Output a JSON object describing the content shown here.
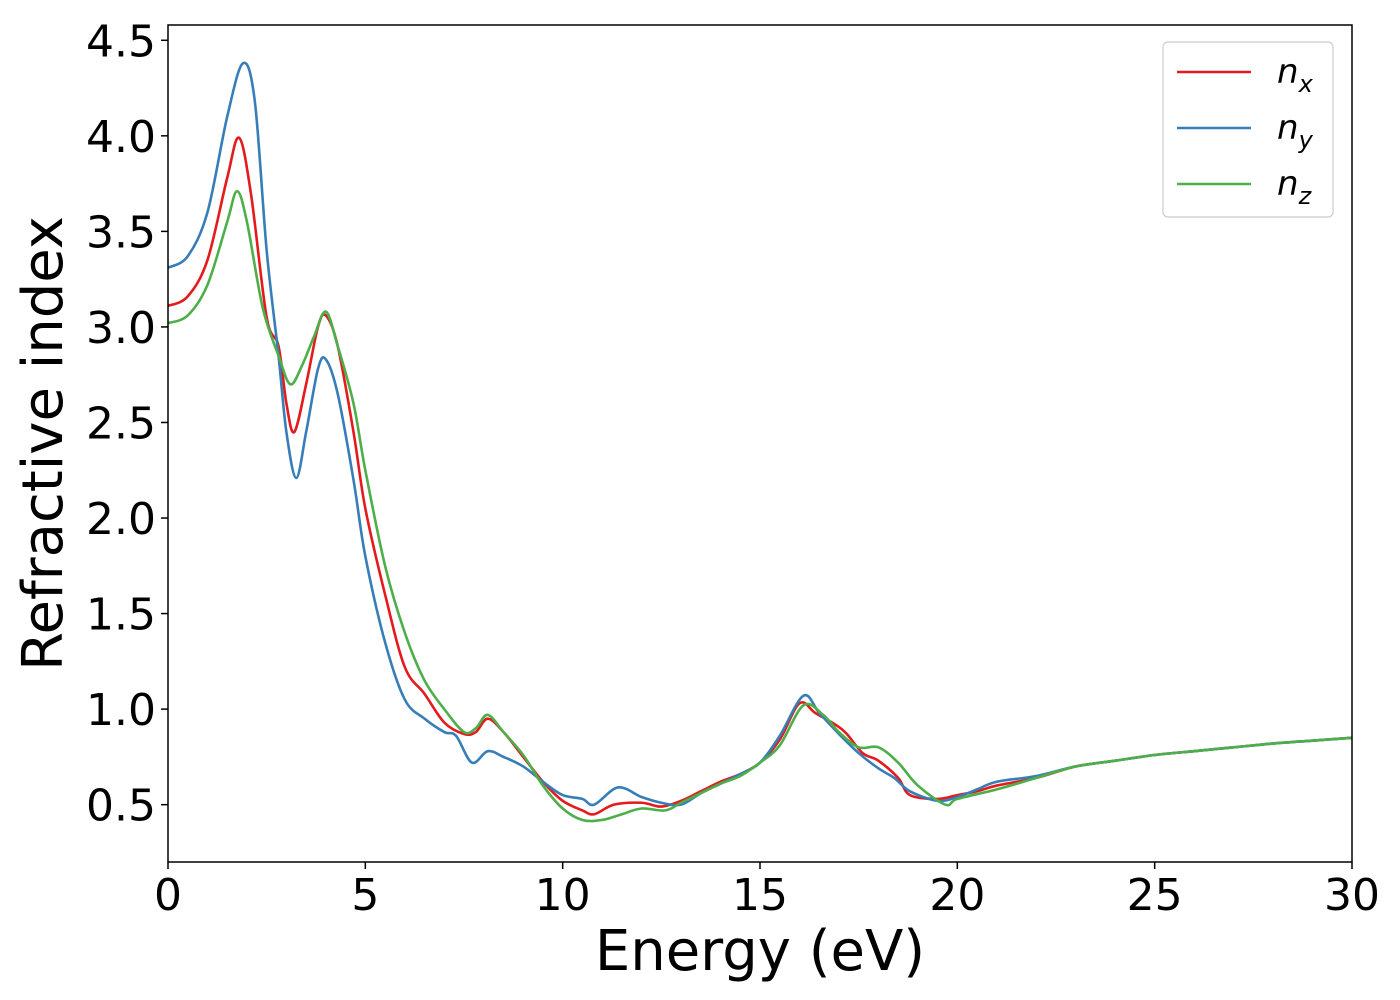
{
  "chart_data": {
    "type": "line",
    "title": "",
    "xlabel": "Energy (eV)",
    "ylabel": "Refractive index",
    "xlim": [
      0,
      30
    ],
    "ylim": [
      0.2,
      4.58
    ],
    "xticks": [
      0,
      5,
      10,
      15,
      20,
      25,
      30
    ],
    "xtick_labels": [
      "0",
      "5",
      "10",
      "15",
      "20",
      "25",
      "30"
    ],
    "yticks": [
      0.5,
      1.0,
      1.5,
      2.0,
      2.5,
      3.0,
      3.5,
      4.0,
      4.5
    ],
    "ytick_labels": [
      "0.5",
      "1.0",
      "1.5",
      "2.0",
      "2.5",
      "3.0",
      "3.5",
      "4.0",
      "4.5"
    ],
    "grid": false,
    "legend_position": "top-right",
    "series": [
      {
        "name_base": "n",
        "name_sub": "x",
        "color": "#e41a1c",
        "points": [
          [
            0,
            3.11
          ],
          [
            0.5,
            3.16
          ],
          [
            1.0,
            3.35
          ],
          [
            1.5,
            3.78
          ],
          [
            1.8,
            3.99
          ],
          [
            2.1,
            3.7
          ],
          [
            2.5,
            3.05
          ],
          [
            2.8,
            2.9
          ],
          [
            3.0,
            2.6
          ],
          [
            3.2,
            2.45
          ],
          [
            3.5,
            2.7
          ],
          [
            3.8,
            3.0
          ],
          [
            4.0,
            3.06
          ],
          [
            4.3,
            2.9
          ],
          [
            4.7,
            2.45
          ],
          [
            5.0,
            2.05
          ],
          [
            5.5,
            1.6
          ],
          [
            6.0,
            1.22
          ],
          [
            6.5,
            1.08
          ],
          [
            7.0,
            0.93
          ],
          [
            7.5,
            0.87
          ],
          [
            7.8,
            0.88
          ],
          [
            8.1,
            0.95
          ],
          [
            8.5,
            0.88
          ],
          [
            9.0,
            0.75
          ],
          [
            9.5,
            0.62
          ],
          [
            10.0,
            0.52
          ],
          [
            10.5,
            0.47
          ],
          [
            10.8,
            0.45
          ],
          [
            11.3,
            0.5
          ],
          [
            12.0,
            0.51
          ],
          [
            12.5,
            0.49
          ],
          [
            13.0,
            0.52
          ],
          [
            13.5,
            0.57
          ],
          [
            14.0,
            0.62
          ],
          [
            14.5,
            0.66
          ],
          [
            15.0,
            0.72
          ],
          [
            15.5,
            0.84
          ],
          [
            16.0,
            1.03
          ],
          [
            16.4,
            0.98
          ],
          [
            16.9,
            0.92
          ],
          [
            17.2,
            0.87
          ],
          [
            17.6,
            0.77
          ],
          [
            18.0,
            0.73
          ],
          [
            18.5,
            0.64
          ],
          [
            18.8,
            0.55
          ],
          [
            19.5,
            0.53
          ],
          [
            20.0,
            0.55
          ],
          [
            20.5,
            0.57
          ],
          [
            21.0,
            0.6
          ],
          [
            22.0,
            0.64
          ],
          [
            23.0,
            0.7
          ],
          [
            24.0,
            0.73
          ],
          [
            25.0,
            0.76
          ],
          [
            26.0,
            0.78
          ],
          [
            27.0,
            0.8
          ],
          [
            28.0,
            0.82
          ],
          [
            29.0,
            0.835
          ],
          [
            30.0,
            0.85
          ]
        ]
      },
      {
        "name_base": "n",
        "name_sub": "y",
        "color": "#377eb8",
        "points": [
          [
            0,
            3.31
          ],
          [
            0.5,
            3.37
          ],
          [
            1.0,
            3.6
          ],
          [
            1.5,
            4.1
          ],
          [
            1.9,
            4.38
          ],
          [
            2.2,
            4.18
          ],
          [
            2.5,
            3.4
          ],
          [
            2.8,
            2.85
          ],
          [
            3.0,
            2.45
          ],
          [
            3.25,
            2.21
          ],
          [
            3.5,
            2.45
          ],
          [
            3.8,
            2.78
          ],
          [
            4.0,
            2.83
          ],
          [
            4.3,
            2.65
          ],
          [
            4.7,
            2.2
          ],
          [
            5.0,
            1.8
          ],
          [
            5.5,
            1.35
          ],
          [
            6.0,
            1.05
          ],
          [
            6.5,
            0.95
          ],
          [
            7.0,
            0.88
          ],
          [
            7.3,
            0.86
          ],
          [
            7.7,
            0.72
          ],
          [
            8.1,
            0.78
          ],
          [
            8.5,
            0.75
          ],
          [
            9.0,
            0.7
          ],
          [
            9.5,
            0.62
          ],
          [
            10.0,
            0.55
          ],
          [
            10.5,
            0.53
          ],
          [
            10.8,
            0.5
          ],
          [
            11.4,
            0.59
          ],
          [
            12.0,
            0.54
          ],
          [
            12.5,
            0.51
          ],
          [
            13.0,
            0.5
          ],
          [
            13.5,
            0.56
          ],
          [
            14.0,
            0.61
          ],
          [
            14.5,
            0.66
          ],
          [
            15.0,
            0.72
          ],
          [
            15.5,
            0.86
          ],
          [
            16.1,
            1.07
          ],
          [
            16.5,
            0.98
          ],
          [
            17.0,
            0.87
          ],
          [
            17.5,
            0.77
          ],
          [
            18.0,
            0.69
          ],
          [
            18.4,
            0.64
          ],
          [
            18.8,
            0.57
          ],
          [
            19.5,
            0.52
          ],
          [
            20.0,
            0.54
          ],
          [
            20.5,
            0.58
          ],
          [
            21.0,
            0.62
          ],
          [
            22.0,
            0.65
          ],
          [
            23.0,
            0.7
          ],
          [
            24.0,
            0.73
          ],
          [
            25.0,
            0.76
          ],
          [
            26.0,
            0.78
          ],
          [
            27.0,
            0.8
          ],
          [
            28.0,
            0.82
          ],
          [
            29.0,
            0.835
          ],
          [
            30.0,
            0.85
          ]
        ]
      },
      {
        "name_base": "n",
        "name_sub": "z",
        "color": "#4daf4a",
        "points": [
          [
            0,
            3.02
          ],
          [
            0.5,
            3.06
          ],
          [
            1.0,
            3.22
          ],
          [
            1.5,
            3.55
          ],
          [
            1.75,
            3.71
          ],
          [
            2.0,
            3.55
          ],
          [
            2.4,
            3.1
          ],
          [
            2.8,
            2.85
          ],
          [
            3.1,
            2.7
          ],
          [
            3.4,
            2.8
          ],
          [
            3.7,
            2.95
          ],
          [
            4.0,
            3.08
          ],
          [
            4.3,
            2.9
          ],
          [
            4.7,
            2.6
          ],
          [
            5.0,
            2.25
          ],
          [
            5.5,
            1.75
          ],
          [
            6.0,
            1.4
          ],
          [
            6.5,
            1.15
          ],
          [
            7.0,
            1.0
          ],
          [
            7.5,
            0.88
          ],
          [
            7.8,
            0.9
          ],
          [
            8.1,
            0.97
          ],
          [
            8.5,
            0.88
          ],
          [
            9.0,
            0.76
          ],
          [
            9.5,
            0.6
          ],
          [
            10.0,
            0.48
          ],
          [
            10.5,
            0.42
          ],
          [
            11.0,
            0.42
          ],
          [
            11.5,
            0.45
          ],
          [
            12.0,
            0.48
          ],
          [
            12.6,
            0.47
          ],
          [
            13.0,
            0.51
          ],
          [
            13.5,
            0.56
          ],
          [
            14.0,
            0.61
          ],
          [
            14.5,
            0.65
          ],
          [
            15.0,
            0.72
          ],
          [
            15.5,
            0.81
          ],
          [
            16.1,
            1.02
          ],
          [
            16.6,
            0.97
          ],
          [
            17.0,
            0.88
          ],
          [
            17.5,
            0.8
          ],
          [
            18.0,
            0.8
          ],
          [
            18.5,
            0.72
          ],
          [
            19.0,
            0.6
          ],
          [
            19.7,
            0.5
          ],
          [
            20.0,
            0.53
          ],
          [
            21.0,
            0.58
          ],
          [
            22.0,
            0.64
          ],
          [
            23.0,
            0.7
          ],
          [
            24.0,
            0.73
          ],
          [
            25.0,
            0.76
          ],
          [
            26.0,
            0.78
          ],
          [
            27.0,
            0.8
          ],
          [
            28.0,
            0.82
          ],
          [
            29.0,
            0.835
          ],
          [
            30.0,
            0.85
          ]
        ]
      }
    ]
  }
}
